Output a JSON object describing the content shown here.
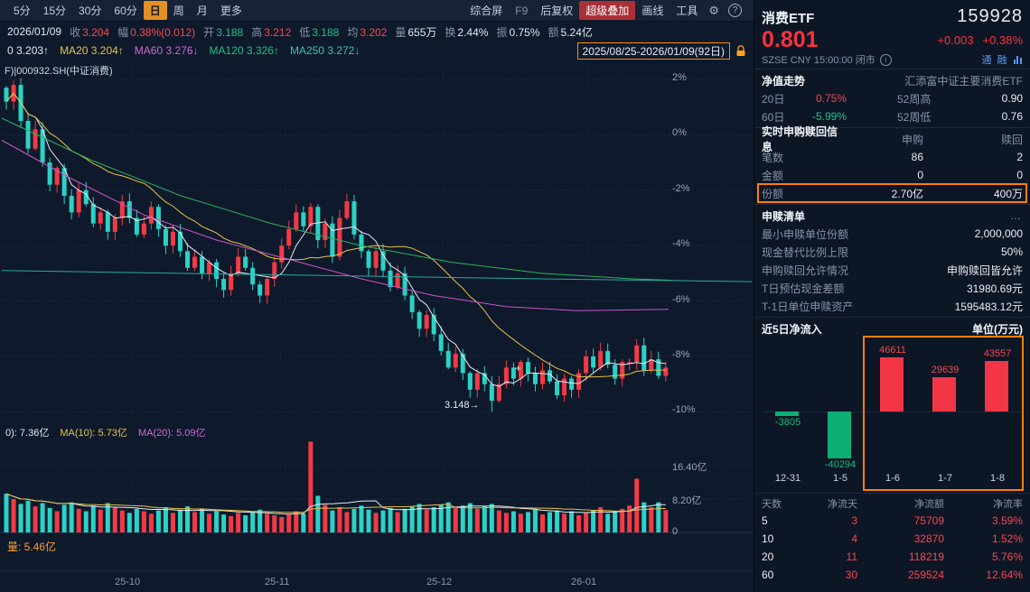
{
  "toolbar": {
    "periods": [
      "5分",
      "15分",
      "30分",
      "60分",
      "日",
      "周",
      "月",
      "更多"
    ],
    "right_items": [
      "综合屏",
      "F9",
      "后复权",
      "超级叠加",
      "画线",
      "工具"
    ]
  },
  "quote_bar": {
    "date": "2026/01/09",
    "items": [
      {
        "label": "收",
        "value": "3.204"
      },
      {
        "label": "幅",
        "value": "0.38%(0.012)"
      },
      {
        "label": "开",
        "value": "3.188"
      },
      {
        "label": "高",
        "value": "3.212"
      },
      {
        "label": "低",
        "value": "3.188"
      },
      {
        "label": "均",
        "value": "3.202"
      },
      {
        "label": "量",
        "value": "655万"
      },
      {
        "label": "换",
        "value": "2.44%"
      },
      {
        "label": "振",
        "value": "0.75%"
      },
      {
        "label": "额",
        "value": "5.24亿"
      }
    ]
  },
  "ma_bar": {
    "items": [
      {
        "label": "0",
        "value": "3.203↑"
      },
      {
        "label": "MA20",
        "value": "3.204↑"
      },
      {
        "label": "MA60",
        "value": "3.276↓"
      },
      {
        "label": "MA120",
        "value": "3.326↑"
      },
      {
        "label": "MA250",
        "value": "3.272↓"
      }
    ],
    "range": "2025/08/25-2026/01/09(92日)"
  },
  "overlay_label": "F)|000932.SH(中证消费)",
  "main_chart": {
    "y_ticks": [
      "2%",
      "0%",
      "-2%",
      "-4%",
      "-6%",
      "-8%",
      "-10%"
    ],
    "y_tick_values": [
      2,
      0,
      -2,
      -4,
      -6,
      -8,
      -10
    ],
    "low_annotation": "3.148→",
    "closes": [
      1.2,
      1.8,
      0.5,
      -0.5,
      0.2,
      -1.0,
      -1.8,
      -1.2,
      -2.2,
      -2.8,
      -2.0,
      -2.5,
      -3.2,
      -2.8,
      -3.5,
      -3.0,
      -2.4,
      -3.0,
      -3.6,
      -3.2,
      -2.6,
      -3.4,
      -4.0,
      -3.5,
      -4.2,
      -4.8,
      -4.4,
      -5.0,
      -4.6,
      -5.2,
      -5.6,
      -5.0,
      -4.4,
      -4.8,
      -5.4,
      -5.8,
      -5.2,
      -4.6,
      -4.0,
      -3.4,
      -2.8,
      -3.3,
      -2.6,
      -3.8,
      -3.2,
      -4.4,
      -3.0,
      -2.4,
      -3.6,
      -4.2,
      -4.8,
      -4.2,
      -4.9,
      -5.5,
      -5.0,
      -5.8,
      -6.4,
      -7.0,
      -6.5,
      -7.2,
      -7.8,
      -8.4,
      -7.9,
      -8.6,
      -9.2,
      -8.6,
      -9.0,
      -9.6,
      -9.0,
      -8.4,
      -8.8,
      -8.2,
      -8.6,
      -9.0,
      -8.5,
      -8.9,
      -9.4,
      -8.8,
      -9.2,
      -8.6,
      -8.0,
      -8.4,
      -7.8,
      -8.3,
      -8.8,
      -8.2,
      -8.2,
      -7.6,
      -8.5,
      -8.1,
      -8.7,
      -8.4
    ],
    "volumes": [
      9.5,
      8.2,
      7.0,
      7.8,
      6.4,
      7.2,
      6.0,
      5.2,
      6.8,
      7.4,
      5.8,
      5.2,
      6.6,
      5.6,
      7.2,
      6.2,
      5.4,
      4.8,
      5.8,
      5.2,
      4.6,
      5.4,
      6.2,
      4.8,
      5.6,
      6.4,
      5.0,
      5.8,
      4.6,
      5.2,
      4.4,
      4.0,
      4.8,
      4.2,
      5.0,
      5.6,
      4.6,
      4.2,
      3.8,
      4.4,
      5.2,
      4.6,
      22.3,
      9.0,
      6.8,
      5.4,
      6.2,
      5.0,
      5.8,
      6.6,
      5.6,
      4.8,
      5.4,
      6.0,
      5.0,
      5.8,
      6.4,
      7.0,
      5.6,
      6.2,
      6.8,
      7.4,
      6.0,
      6.6,
      7.2,
      5.8,
      6.4,
      7.0,
      5.4,
      4.8,
      5.2,
      4.6,
      5.0,
      5.6,
      4.4,
      5.0,
      5.4,
      4.6,
      5.2,
      4.2,
      4.8,
      5.4,
      6.2,
      4.6,
      5.2,
      5.8,
      6.6,
      13.2,
      7.4,
      6.2,
      7.4,
      5.5
    ],
    "ma_green": [
      [
        2,
        0.6
      ],
      [
        100,
        -0.9
      ],
      [
        200,
        -2.2
      ],
      [
        300,
        -3.2
      ],
      [
        400,
        -4.0
      ],
      [
        500,
        -4.6
      ],
      [
        600,
        -5.0
      ],
      [
        700,
        -5.2
      ],
      [
        745,
        -5.25
      ]
    ],
    "ma_purple": [
      [
        2,
        -0.2
      ],
      [
        80,
        -1.6
      ],
      [
        160,
        -2.9
      ],
      [
        240,
        -3.8
      ],
      [
        320,
        -4.5
      ],
      [
        400,
        -5.2
      ],
      [
        480,
        -5.8
      ],
      [
        560,
        -6.2
      ],
      [
        640,
        -6.35
      ],
      [
        740,
        -6.3
      ]
    ],
    "ma_teal": [
      [
        2,
        -4.9
      ],
      [
        300,
        -5.05
      ],
      [
        600,
        -5.2
      ],
      [
        832,
        -5.3
      ]
    ]
  },
  "volume_pane": {
    "legend": [
      {
        "label": "0):",
        "value": "7.36亿"
      },
      {
        "label": "MA(10):",
        "value": "5.73亿"
      },
      {
        "label": "MA(20):",
        "value": "5.09亿"
      }
    ],
    "y_ticks": [
      "16.40亿",
      "8.20亿",
      "0"
    ],
    "y_tick_values": [
      16.4,
      8.2,
      0
    ],
    "footer": "量: 5.46亿"
  },
  "x_axis": [
    "25-10",
    "25-11",
    "25-12",
    "26-01"
  ],
  "panel": {
    "name": "消费ETF",
    "code": "159928",
    "price": "0.801",
    "change": "+0.003",
    "change_pct": "+0.38%",
    "status": "SZSE CNY 15:00:00 闭市",
    "tags": [
      "通",
      "融"
    ],
    "nav": {
      "label": "净值走势",
      "fund": "汇添富中证主要消费ETF",
      "d20_label": "20日",
      "d20": "0.75%",
      "high52_label": "52周高",
      "high52": "0.90",
      "d60_label": "60日",
      "d60": "-5.99%",
      "low52_label": "52周低",
      "low52": "0.76"
    },
    "realtime": {
      "title": "实时申购赎回信息",
      "col_buy": "申购",
      "col_sell": "赎回",
      "rows": [
        {
          "label": "笔数",
          "buy": "86",
          "sell": "2"
        },
        {
          "label": "金额",
          "buy": "0",
          "sell": "0"
        },
        {
          "label": "份额",
          "buy": "2.70亿",
          "sell": "400万"
        }
      ]
    },
    "list": {
      "title": "申赎清单",
      "more": "…",
      "rows": [
        {
          "k": "最小申赎单位份额",
          "v": "2,000,000"
        },
        {
          "k": "现金替代比例上限",
          "v": "50%"
        },
        {
          "k": "申购赎回允许情况",
          "v": "申购赎回皆允许"
        },
        {
          "k": "T日预估现金差额",
          "v": "31980.69元"
        },
        {
          "k": "T-1日单位申赎资产",
          "v": "1595483.12元"
        }
      ]
    },
    "flows": {
      "title": "近5日净流入",
      "unit": "单位(万元)",
      "bars": [
        {
          "date": "12-31",
          "value": -3805
        },
        {
          "date": "1-5",
          "value": -40294
        },
        {
          "date": "1-6",
          "value": 46611
        },
        {
          "date": "1-7",
          "value": 29639
        },
        {
          "date": "1-8",
          "value": 43557
        }
      ]
    },
    "table": {
      "headers": [
        "天数",
        "净流天",
        "净流额",
        "净流率"
      ],
      "rows": [
        [
          "5",
          "3",
          "75709",
          "3.59%"
        ],
        [
          "10",
          "4",
          "32870",
          "1.52%"
        ],
        [
          "20",
          "11",
          "118219",
          "5.76%"
        ],
        [
          "60",
          "30",
          "259524",
          "12.64%"
        ]
      ]
    }
  }
}
